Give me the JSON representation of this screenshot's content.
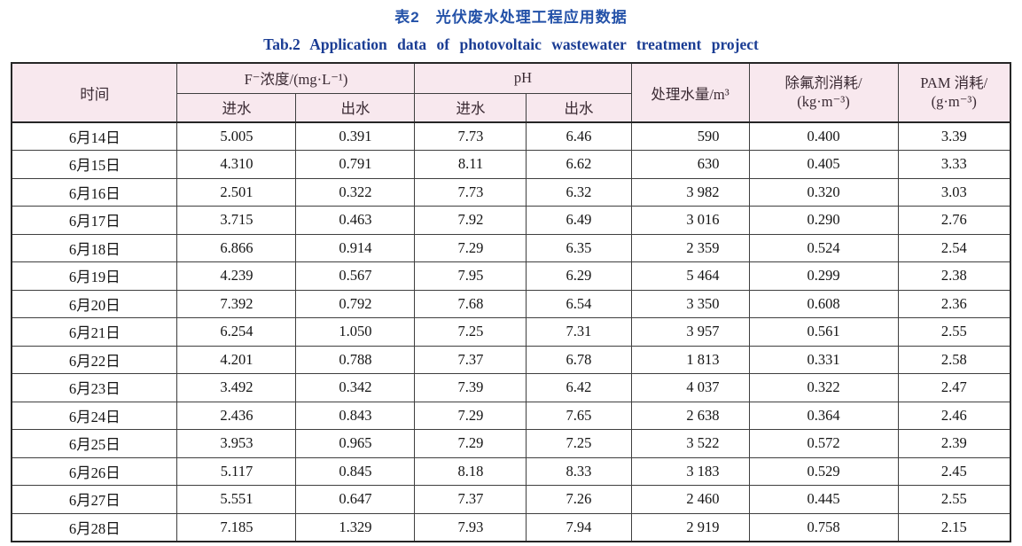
{
  "caption": {
    "zh": "表2　光伏废水处理工程应用数据",
    "en": "Tab.2 Application data of photovoltaic wastewater treatment project"
  },
  "colors": {
    "caption_zh_blue": "#2351a8",
    "caption_en_navy": "#1b3d94",
    "header_background_pink": "#f8e8ee",
    "header_text": "#3a2a33",
    "body_text": "#141414",
    "grid_border": "#3f3f3f"
  },
  "table": {
    "headers": {
      "time": "时间",
      "f_group": "F⁻浓度/(mg·L⁻¹)",
      "ph_group": "pH",
      "inflow": "进水",
      "outflow": "出水",
      "volume": "处理水量/m³",
      "defluoridant_line1": "除氟剂消耗/",
      "defluoridant_line2": "(kg·m⁻³)",
      "pam_line1": "PAM 消耗/",
      "pam_line2": "(g·m⁻³)"
    },
    "rows": [
      [
        "6月14日",
        "5.005",
        "0.391",
        "7.73",
        "6.46",
        "590",
        "0.400",
        "3.39"
      ],
      [
        "6月15日",
        "4.310",
        "0.791",
        "8.11",
        "6.62",
        "630",
        "0.405",
        "3.33"
      ],
      [
        "6月16日",
        "2.501",
        "0.322",
        "7.73",
        "6.32",
        "3 982",
        "0.320",
        "3.03"
      ],
      [
        "6月17日",
        "3.715",
        "0.463",
        "7.92",
        "6.49",
        "3 016",
        "0.290",
        "2.76"
      ],
      [
        "6月18日",
        "6.866",
        "0.914",
        "7.29",
        "6.35",
        "2 359",
        "0.524",
        "2.54"
      ],
      [
        "6月19日",
        "4.239",
        "0.567",
        "7.95",
        "6.29",
        "5 464",
        "0.299",
        "2.38"
      ],
      [
        "6月20日",
        "7.392",
        "0.792",
        "7.68",
        "6.54",
        "3 350",
        "0.608",
        "2.36"
      ],
      [
        "6月21日",
        "6.254",
        "1.050",
        "7.25",
        "7.31",
        "3 957",
        "0.561",
        "2.55"
      ],
      [
        "6月22日",
        "4.201",
        "0.788",
        "7.37",
        "6.78",
        "1 813",
        "0.331",
        "2.58"
      ],
      [
        "6月23日",
        "3.492",
        "0.342",
        "7.39",
        "6.42",
        "4 037",
        "0.322",
        "2.47"
      ],
      [
        "6月24日",
        "2.436",
        "0.843",
        "7.29",
        "7.65",
        "2 638",
        "0.364",
        "2.46"
      ],
      [
        "6月25日",
        "3.953",
        "0.965",
        "7.29",
        "7.25",
        "3 522",
        "0.572",
        "2.39"
      ],
      [
        "6月26日",
        "5.117",
        "0.845",
        "8.18",
        "8.33",
        "3 183",
        "0.529",
        "2.45"
      ],
      [
        "6月27日",
        "5.551",
        "0.647",
        "7.37",
        "7.26",
        "2 460",
        "0.445",
        "2.55"
      ],
      [
        "6月28日",
        "7.185",
        "1.329",
        "7.93",
        "7.94",
        "2 919",
        "0.758",
        "2.15"
      ]
    ]
  }
}
